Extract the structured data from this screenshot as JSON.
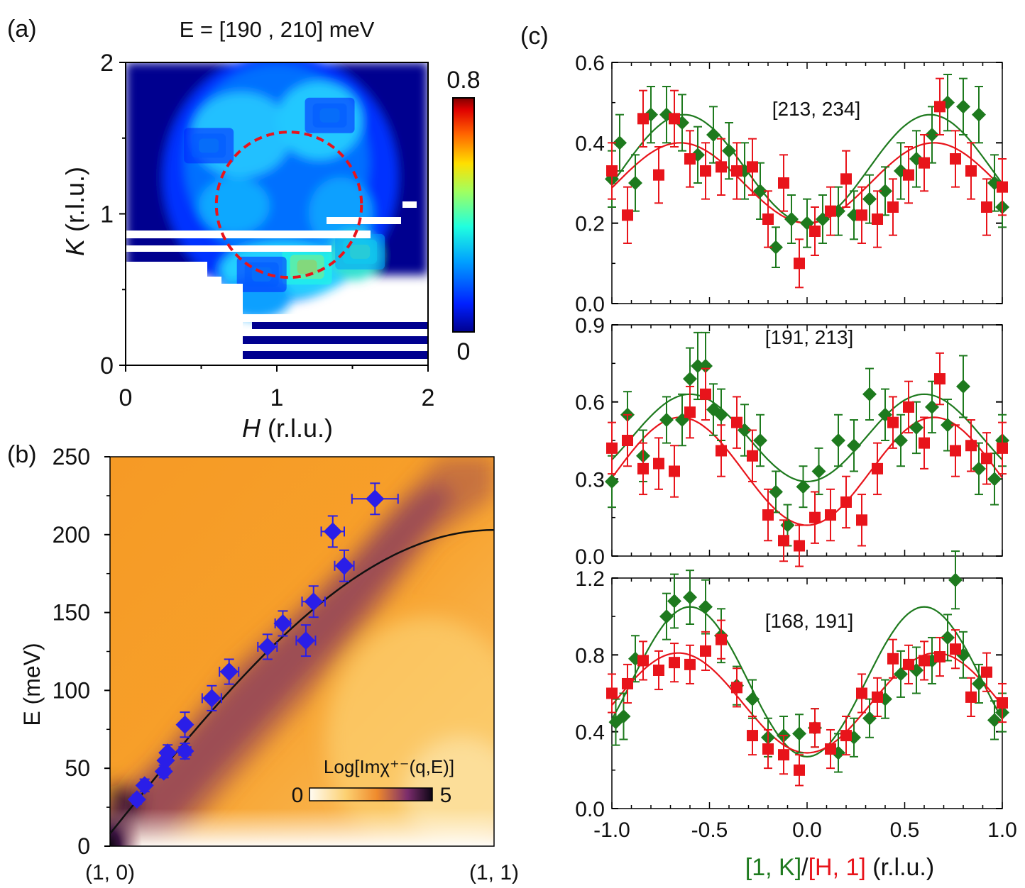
{
  "colors": {
    "green": "#1e7a1e",
    "red": "#e8141b",
    "blue": "#2a1ee8",
    "jet": [
      "#00008f",
      "#0020ff",
      "#00a0ff",
      "#20ffdf",
      "#a0ff60",
      "#ffdf00",
      "#ff6000",
      "#df0000",
      "#800000"
    ],
    "inferno_bg": [
      "#fffaf0",
      "#fbb040",
      "#f59a23",
      "#e07030",
      "#a04a60",
      "#50206a",
      "#1a0c1a"
    ]
  },
  "chart_data": [
    {
      "id": "a",
      "type": "heatmap",
      "panel_label": "(a)",
      "title": "E = [190 , 210] meV",
      "xlabel_italic": "H",
      "xlabel_rest": " (r.l.u.)",
      "ylabel_italic": "K",
      "ylabel_rest": " (r.l.u.)",
      "xlim": [
        0,
        2
      ],
      "ylim": [
        0,
        2
      ],
      "xticks": [
        "0",
        "1",
        "2"
      ],
      "yticks": [
        "0",
        "1",
        "2"
      ],
      "colorbar": {
        "min": 0,
        "max": 0.8,
        "min_label": "0",
        "max_label": "0.8"
      },
      "circle": {
        "center": [
          1.08,
          1.06
        ],
        "radius": 0.48,
        "style": "dashed red"
      },
      "hot_spots": [
        {
          "h": 1.2,
          "k": 0.65,
          "value": 0.65
        },
        {
          "h": 1.55,
          "k": 0.75,
          "value": 0.45
        },
        {
          "h": 0.55,
          "k": 1.45,
          "value": 0.28
        },
        {
          "h": 1.35,
          "k": 1.65,
          "value": 0.28
        },
        {
          "h": 0.9,
          "k": 0.6,
          "value": 0.3
        }
      ]
    },
    {
      "id": "b",
      "type": "scatter",
      "panel_label": "(b)",
      "ylabel": "E (meV)",
      "xlim": [
        0,
        1
      ],
      "ylim": [
        0,
        250
      ],
      "yticks": [
        "0",
        "50",
        "100",
        "150",
        "200",
        "250"
      ],
      "xtick_labels": [
        "(1, 0)",
        "(1, 1)"
      ],
      "colorbar": {
        "label": "Log[Imχ⁺⁻(q,E)]",
        "min_label": "0",
        "max_label": "5"
      },
      "points": [
        {
          "q": 0.07,
          "E": 30,
          "dq": 0.0,
          "dE": 3
        },
        {
          "q": 0.09,
          "E": 39,
          "dq": 0.01,
          "dE": 4
        },
        {
          "q": 0.14,
          "E": 48,
          "dq": 0.0,
          "dE": 4
        },
        {
          "q": 0.145,
          "E": 55,
          "dq": 0.01,
          "dE": 5
        },
        {
          "q": 0.15,
          "E": 60,
          "dq": 0.0,
          "dE": 5
        },
        {
          "q": 0.195,
          "E": 61,
          "dq": 0.015,
          "dE": 5
        },
        {
          "q": 0.195,
          "E": 78,
          "dq": 0.01,
          "dE": 8
        },
        {
          "q": 0.265,
          "E": 95,
          "dq": 0.025,
          "dE": 8
        },
        {
          "q": 0.31,
          "E": 112,
          "dq": 0.025,
          "dE": 8
        },
        {
          "q": 0.41,
          "E": 128,
          "dq": 0.025,
          "dE": 8
        },
        {
          "q": 0.45,
          "E": 143,
          "dq": 0.02,
          "dE": 8
        },
        {
          "q": 0.51,
          "E": 132,
          "dq": 0.025,
          "dE": 10
        },
        {
          "q": 0.53,
          "E": 157,
          "dq": 0.03,
          "dE": 10
        },
        {
          "q": 0.58,
          "E": 202,
          "dq": 0.03,
          "dE": 10
        },
        {
          "q": 0.61,
          "E": 180,
          "dq": 0.025,
          "dE": 10
        },
        {
          "q": 0.69,
          "E": 223,
          "dq": 0.06,
          "dE": 10
        }
      ],
      "curve": {
        "type": "dispersion",
        "E_max": 203,
        "E_min": 8,
        "q_top": 1.0
      }
    },
    {
      "id": "c",
      "type": "scatter",
      "panel_label": "(c)",
      "xlabel_parts": [
        {
          "text": "[1, K]",
          "color": "green"
        },
        {
          "text": "/",
          "color": "black"
        },
        {
          "text": "[H, 1]",
          "color": "red"
        },
        {
          "text": " (r.l.u.)",
          "color": "black"
        }
      ],
      "xlim": [
        -1,
        1
      ],
      "xticks": [
        "-1.0",
        "-0.5",
        "0.0",
        "0.5",
        "1.0"
      ],
      "subpanels": [
        {
          "label": "[213, 234]",
          "ylim": [
            0,
            0.6
          ],
          "yticks": [
            "0.0",
            "0.2",
            "0.4",
            "0.6"
          ],
          "fit_green": {
            "A": 0.135,
            "B": 0.335,
            "x0": 0.63
          },
          "fit_red": {
            "A": 0.1,
            "B": 0.3,
            "x0": 0.65
          },
          "green": {
            "x": [
              -1.0,
              -0.96,
              -0.88,
              -0.8,
              -0.72,
              -0.64,
              -0.56,
              -0.48,
              -0.4,
              -0.32,
              -0.24,
              -0.16,
              -0.08,
              0.0,
              0.08,
              0.16,
              0.24,
              0.32,
              0.4,
              0.48,
              0.56,
              0.64,
              0.72,
              0.8,
              0.88,
              0.96,
              1.0
            ],
            "y": [
              0.31,
              0.4,
              0.3,
              0.47,
              0.47,
              0.45,
              0.37,
              0.42,
              0.38,
              0.33,
              0.28,
              0.14,
              0.21,
              0.2,
              0.21,
              0.23,
              0.22,
              0.26,
              0.28,
              0.33,
              0.36,
              0.42,
              0.5,
              0.49,
              0.47,
              0.3,
              0.24
            ],
            "err": [
              0.07,
              0.07,
              0.07,
              0.07,
              0.07,
              0.07,
              0.07,
              0.07,
              0.07,
              0.07,
              0.07,
              0.05,
              0.06,
              0.06,
              0.06,
              0.06,
              0.06,
              0.06,
              0.06,
              0.07,
              0.07,
              0.07,
              0.07,
              0.07,
              0.07,
              0.07,
              0.05
            ]
          },
          "red": {
            "x": [
              -1.0,
              -0.92,
              -0.84,
              -0.76,
              -0.68,
              -0.6,
              -0.52,
              -0.44,
              -0.36,
              -0.28,
              -0.2,
              -0.12,
              -0.04,
              0.04,
              0.12,
              0.2,
              0.28,
              0.36,
              0.44,
              0.52,
              0.6,
              0.68,
              0.76,
              0.84,
              0.92,
              1.0
            ],
            "y": [
              0.33,
              0.22,
              0.46,
              0.32,
              0.46,
              0.36,
              0.33,
              0.34,
              0.33,
              0.34,
              0.21,
              0.3,
              0.1,
              0.18,
              0.23,
              0.31,
              0.22,
              0.21,
              0.24,
              0.32,
              0.35,
              0.49,
              0.36,
              0.33,
              0.24,
              0.29
            ],
            "err": [
              0.07,
              0.07,
              0.07,
              0.07,
              0.07,
              0.07,
              0.07,
              0.07,
              0.07,
              0.07,
              0.07,
              0.07,
              0.06,
              0.06,
              0.06,
              0.07,
              0.07,
              0.07,
              0.07,
              0.07,
              0.07,
              0.07,
              0.07,
              0.07,
              0.07,
              0.07
            ]
          }
        },
        {
          "label": "[191, 213]",
          "ylim": [
            0,
            0.9
          ],
          "yticks": [
            "0.0",
            "0.3",
            "0.6",
            "0.9"
          ],
          "fit_green": {
            "A": 0.17,
            "B": 0.46,
            "x0": 0.6
          },
          "fit_red": {
            "A": 0.21,
            "B": 0.33,
            "x0": 0.65
          },
          "green": {
            "x": [
              -1.0,
              -0.92,
              -0.84,
              -0.72,
              -0.64,
              -0.6,
              -0.56,
              -0.52,
              -0.48,
              -0.44,
              -0.32,
              -0.24,
              -0.16,
              -0.1,
              -0.02,
              0.06,
              0.16,
              0.24,
              0.32,
              0.4,
              0.48,
              0.56,
              0.64,
              0.72,
              0.8,
              0.88,
              0.96,
              1.0
            ],
            "y": [
              0.29,
              0.55,
              0.39,
              0.53,
              0.53,
              0.69,
              0.74,
              0.74,
              0.57,
              0.55,
              0.49,
              0.45,
              0.25,
              0.12,
              0.27,
              0.33,
              0.45,
              0.43,
              0.63,
              0.55,
              0.45,
              0.5,
              0.58,
              0.51,
              0.66,
              0.34,
              0.3,
              0.45
            ],
            "err": [
              0.1,
              0.09,
              0.1,
              0.09,
              0.1,
              0.12,
              0.13,
              0.13,
              0.1,
              0.1,
              0.1,
              0.1,
              0.08,
              0.08,
              0.08,
              0.09,
              0.1,
              0.1,
              0.1,
              0.1,
              0.1,
              0.1,
              0.1,
              0.1,
              0.12,
              0.1,
              0.1,
              0.1
            ]
          },
          "red": {
            "x": [
              -1.0,
              -0.92,
              -0.84,
              -0.76,
              -0.68,
              -0.6,
              -0.52,
              -0.44,
              -0.36,
              -0.28,
              -0.2,
              -0.12,
              -0.04,
              0.04,
              0.12,
              0.2,
              0.28,
              0.36,
              0.44,
              0.52,
              0.6,
              0.68,
              0.76,
              0.84,
              0.92,
              1.0
            ],
            "y": [
              0.42,
              0.45,
              0.34,
              0.36,
              0.33,
              0.56,
              0.63,
              0.41,
              0.52,
              0.39,
              0.16,
              0.06,
              0.04,
              0.15,
              0.16,
              0.21,
              0.14,
              0.34,
              0.52,
              0.58,
              0.44,
              0.69,
              0.41,
              0.43,
              0.38,
              0.42
            ],
            "err": [
              0.1,
              0.1,
              0.1,
              0.1,
              0.1,
              0.1,
              0.1,
              0.1,
              0.1,
              0.1,
              0.1,
              0.08,
              0.08,
              0.1,
              0.1,
              0.1,
              0.1,
              0.1,
              0.1,
              0.1,
              0.1,
              0.1,
              0.1,
              0.1,
              0.1,
              0.1
            ]
          }
        },
        {
          "label": "[168, 191]",
          "ylim": [
            0,
            1.2
          ],
          "yticks": [
            "0.0",
            "0.4",
            "0.8",
            "1.2"
          ],
          "fit_green": {
            "A": 0.39,
            "B": 0.66,
            "x0": 0.6
          },
          "fit_red": {
            "A": 0.26,
            "B": 0.55,
            "x0": 0.66
          },
          "green": {
            "x": [
              -0.98,
              -0.94,
              -0.88,
              -0.72,
              -0.68,
              -0.6,
              -0.52,
              -0.44,
              -0.36,
              -0.28,
              -0.2,
              -0.12,
              -0.04,
              0.04,
              0.16,
              0.24,
              0.32,
              0.4,
              0.48,
              0.56,
              0.64,
              0.72,
              0.76,
              0.8,
              0.88,
              0.96,
              1.0
            ],
            "y": [
              0.45,
              0.48,
              0.78,
              1.0,
              1.08,
              1.1,
              1.05,
              0.9,
              0.64,
              0.57,
              0.37,
              0.38,
              0.39,
              0.42,
              0.29,
              0.37,
              0.47,
              0.57,
              0.7,
              0.72,
              0.77,
              0.89,
              1.19,
              0.8,
              0.65,
              0.46,
              0.5
            ],
            "err": [
              0.12,
              0.12,
              0.12,
              0.12,
              0.14,
              0.14,
              0.14,
              0.14,
              0.1,
              0.1,
              0.1,
              0.1,
              0.1,
              0.1,
              0.1,
              0.1,
              0.1,
              0.1,
              0.12,
              0.12,
              0.12,
              0.12,
              0.15,
              0.12,
              0.1,
              0.1,
              0.1
            ]
          },
          "red": {
            "x": [
              -1.0,
              -0.92,
              -0.84,
              -0.76,
              -0.68,
              -0.6,
              -0.52,
              -0.44,
              -0.36,
              -0.28,
              -0.2,
              -0.12,
              -0.04,
              0.04,
              0.12,
              0.2,
              0.28,
              0.36,
              0.44,
              0.52,
              0.6,
              0.68,
              0.76,
              0.84,
              0.92,
              1.0
            ],
            "y": [
              0.6,
              0.65,
              0.77,
              0.72,
              0.76,
              0.75,
              0.82,
              0.88,
              0.63,
              0.38,
              0.31,
              0.28,
              0.2,
              0.42,
              0.31,
              0.38,
              0.6,
              0.58,
              0.78,
              0.75,
              0.77,
              0.79,
              0.83,
              0.58,
              0.71,
              0.55
            ],
            "err": [
              0.1,
              0.1,
              0.1,
              0.1,
              0.1,
              0.1,
              0.1,
              0.1,
              0.1,
              0.1,
              0.1,
              0.1,
              0.08,
              0.1,
              0.1,
              0.1,
              0.1,
              0.1,
              0.1,
              0.1,
              0.1,
              0.1,
              0.1,
              0.1,
              0.1,
              0.1
            ]
          }
        }
      ]
    }
  ]
}
